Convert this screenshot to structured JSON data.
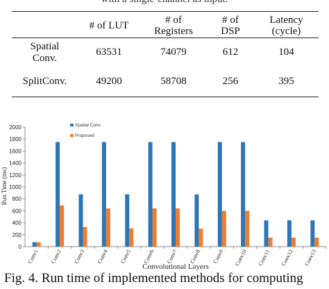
{
  "top_caption": "with a single-channel as input.",
  "table": {
    "headers": [
      "",
      "# of LUT",
      "# of Registers",
      "# of DSP",
      "Latency (cycle)"
    ],
    "header_lines": [
      [
        ""
      ],
      [
        "# of LUT"
      ],
      [
        "# of",
        "Registers"
      ],
      [
        "# of",
        "DSP"
      ],
      [
        "Latency",
        "(cycle)"
      ]
    ],
    "rows": [
      {
        "label": "Spatial Conv.",
        "label_lines": [
          "Spatial",
          "Conv."
        ],
        "lut": "63531",
        "registers": "74079",
        "dsp": "612",
        "latency": "104"
      },
      {
        "label": "SplitConv.",
        "label_lines": [
          "SplitConv."
        ],
        "lut": "49200",
        "registers": "58708",
        "dsp": "256",
        "latency": "395"
      }
    ]
  },
  "chart_data": {
    "type": "bar",
    "categories": [
      "Conv1",
      "Conv2",
      "Conv3",
      "Conv4",
      "Conv5",
      "Conv6",
      "Conv7",
      "Conv8",
      "Conv9",
      "Conv10",
      "Conv11",
      "Conv12",
      "Conv13"
    ],
    "series": [
      {
        "name": "Spatial Conv",
        "color": "#2e75b6",
        "values": [
          75,
          1750,
          875,
          1750,
          875,
          1750,
          1750,
          875,
          1750,
          1750,
          440,
          440,
          440
        ]
      },
      {
        "name": "Proposed",
        "color": "#ed7d31",
        "values": [
          75,
          690,
          330,
          640,
          305,
          640,
          640,
          300,
          600,
          600,
          150,
          150,
          150
        ]
      }
    ],
    "xlabel": "Convolutional Layers",
    "ylabel": "Run Time (ms)",
    "ylim": [
      0,
      2000
    ],
    "yticks": [
      0,
      200,
      400,
      600,
      800,
      1000,
      1200,
      1400,
      1600,
      1800,
      2000
    ],
    "grid": false,
    "legend_position": "top-left"
  },
  "figure_caption": "Fig. 4. Run time of implemented methods for computing"
}
